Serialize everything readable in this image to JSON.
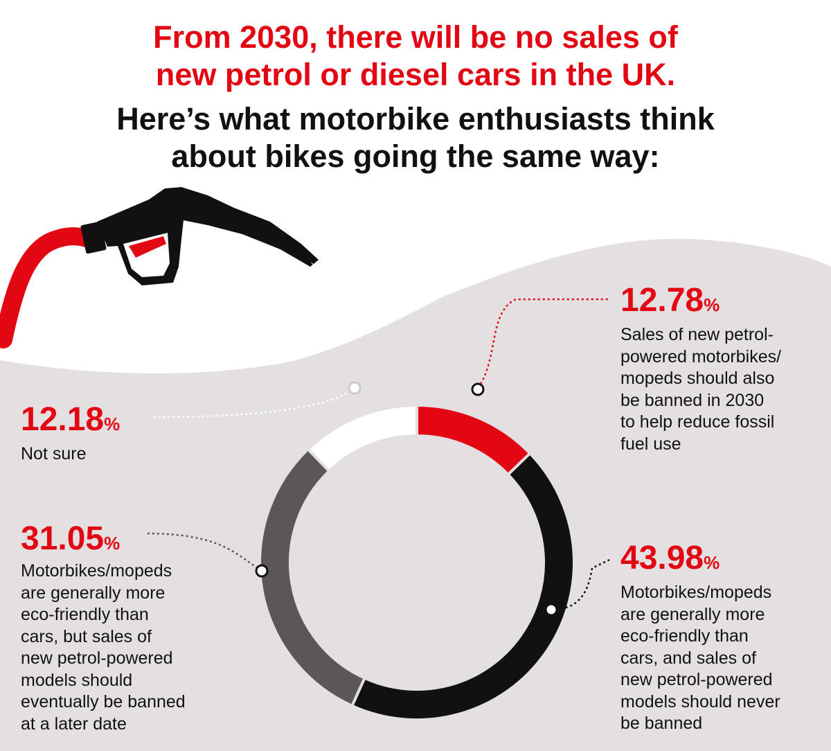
{
  "title_lines": [
    "From 2030, there will be no sales of",
    "new petrol or diesel cars in the UK.",
    "Here’s what motorbike enthusiasts think",
    "about bikes going the same way:"
  ],
  "colors": {
    "accent_red": "#e30613",
    "black": "#111111",
    "dark_grey": "#5b5758",
    "background_grey": "#e4e0e1",
    "white": "#ffffff"
  },
  "illustration": {
    "icon": "fuel-pump-nozzle-icon"
  },
  "chart_data": {
    "type": "pie",
    "donut": true,
    "categories": [
      "Sales of new petrol-powered motorbikes/ mopeds should also be banned in 2030 to help reduce fossil fuel use",
      "Motorbikes/mopeds are generally more eco-friendly than cars, and sales of new petrol-powered models should never be banned",
      "Motorbikes/mopeds are generally more eco-friendly than cars, but sales of new petrol-powered models should eventually be banned at a later date",
      "Not sure"
    ],
    "values": [
      12.78,
      43.98,
      31.05,
      12.18
    ],
    "labels": [
      "12.78",
      "43.98",
      "31.05",
      "12.18"
    ],
    "unit": "%",
    "slice_colors": [
      "#e30613",
      "#111111",
      "#5b5758",
      "#ffffff"
    ],
    "descriptions": [
      "Sales of new petrol-\npowered motorbikes/\nmopeds should also\nbe banned in 2030\nto help reduce fossil\nfuel use",
      "Motorbikes/mopeds\nare generally more\neco-friendly than\ncars, and sales of\nnew petrol-powered\nmodels should never\nbe banned",
      "Motorbikes/mopeds\nare generally more\neco-friendly than\ncars, but sales of\nnew petrol-powered\nmodels should\neventually be banned\nat a later date",
      "Not sure"
    ]
  }
}
